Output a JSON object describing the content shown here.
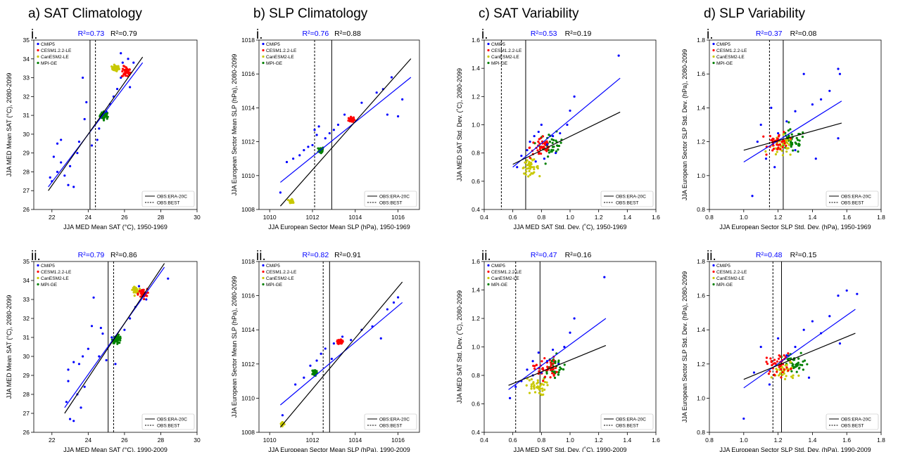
{
  "legend_entries": [
    {
      "name": "CMIP5",
      "color": "#0000ff"
    },
    {
      "name": "CESM1.2.2-LE",
      "color": "#ff0000"
    },
    {
      "name": "CanESM2-LE",
      "color": "#c8c800"
    },
    {
      "name": "MPI-GE",
      "color": "#008000"
    }
  ],
  "obs_legend": [
    "OBS:ERA-20C",
    "OBS:BEST"
  ],
  "colors": {
    "cmip": "#0000ff",
    "cesm": "#ff0000",
    "canesm": "#c8c800",
    "mpi": "#008000",
    "fit_all": "#000000",
    "fit_cmip": "#0000ff",
    "r2_blue": "#0000ff"
  },
  "chart_data": [
    {
      "type": "scatter",
      "col_title": "a) SAT Climatology",
      "row_label": "i.",
      "r2_cmip": "R²=0.73",
      "r2_all": "R²=0.79",
      "xlabel": "JJA MED Mean SAT (°C), 1950-1969",
      "ylabel": "JJA MED Mean SAT (°C), 2080-2099",
      "xlim": [
        21,
        30
      ],
      "ylim": [
        26,
        35
      ],
      "xticks": [
        22,
        24,
        26,
        28,
        30
      ],
      "yticks": [
        26,
        27,
        28,
        29,
        30,
        31,
        32,
        33,
        34,
        35
      ],
      "tick_dec": 0,
      "obs_era": 24.1,
      "obs_best": 24.4,
      "fit_all": [
        [
          21.8,
          27.0
        ],
        [
          27.0,
          34.1
        ]
      ],
      "fit_cmip": [
        [
          21.8,
          27.2
        ],
        [
          27.0,
          33.8
        ]
      ],
      "clusters": {
        "cesm": [
          26.1,
          33.3,
          0.25,
          0.3
        ],
        "canesm": [
          25.5,
          33.5,
          0.2,
          0.15
        ],
        "mpi": [
          24.9,
          31.0,
          0.25,
          0.2
        ]
      },
      "cmip_points": [
        [
          21.9,
          27.7
        ],
        [
          22.0,
          27.5
        ],
        [
          22.3,
          28.0
        ],
        [
          22.5,
          28.5
        ],
        [
          22.7,
          27.8
        ],
        [
          22.9,
          27.3
        ],
        [
          23.0,
          28.3
        ],
        [
          23.2,
          27.2
        ],
        [
          23.4,
          29.0
        ],
        [
          23.5,
          29.6
        ],
        [
          22.3,
          29.5
        ],
        [
          22.5,
          29.7
        ],
        [
          23.8,
          30.8
        ],
        [
          23.9,
          31.7
        ],
        [
          23.7,
          33.0
        ],
        [
          24.5,
          29.7
        ],
        [
          24.6,
          30.3
        ],
        [
          25.0,
          31.2
        ],
        [
          25.2,
          31.6
        ],
        [
          25.4,
          32.0
        ],
        [
          25.6,
          32.4
        ],
        [
          25.8,
          33.0
        ],
        [
          25.8,
          34.3
        ],
        [
          25.9,
          33.8
        ],
        [
          26.2,
          34.0
        ],
        [
          26.5,
          33.8
        ],
        [
          26.3,
          32.5
        ],
        [
          24.2,
          29.4
        ],
        [
          22.1,
          28.8
        ]
      ]
    },
    {
      "type": "scatter",
      "col_title": "b) SLP Climatology",
      "row_label": "i.",
      "r2_cmip": "R²=0.76",
      "r2_all": "R²=0.88",
      "xlabel": "JJA European Sector Mean SLP (hPa), 1950-1969",
      "ylabel": "JJA European Sector Mean SLP (hPa), 2080-2099",
      "xlim": [
        1009.5,
        1017
      ],
      "ylim": [
        1008,
        1018
      ],
      "xticks": [
        1010,
        1012,
        1014,
        1016
      ],
      "yticks": [
        1008,
        1010,
        1012,
        1014,
        1016,
        1018
      ],
      "tick_dec": 0,
      "obs_era": 1012.9,
      "obs_best": 1012.1,
      "fit_all": [
        [
          1010.5,
          1008.2
        ],
        [
          1016.6,
          1016.9
        ]
      ],
      "fit_cmip": [
        [
          1010.5,
          1009.6
        ],
        [
          1016.6,
          1015.8
        ]
      ],
      "clusters": {
        "cesm": [
          1013.8,
          1013.3,
          0.12,
          0.15
        ],
        "canesm": [
          1011.0,
          1008.5,
          0.08,
          0.1
        ],
        "mpi": [
          1012.4,
          1011.5,
          0.12,
          0.2
        ]
      },
      "cmip_points": [
        [
          1010.5,
          1009.0
        ],
        [
          1010.8,
          1010.8
        ],
        [
          1011.1,
          1011.0
        ],
        [
          1011.4,
          1011.2
        ],
        [
          1011.8,
          1011.7
        ],
        [
          1012.1,
          1012.7
        ],
        [
          1012.2,
          1012.4
        ],
        [
          1012.6,
          1012.2
        ],
        [
          1012.8,
          1012.5
        ],
        [
          1013.0,
          1012.7
        ],
        [
          1013.2,
          1013.0
        ],
        [
          1013.5,
          1013.6
        ],
        [
          1014.3,
          1014.3
        ],
        [
          1015.0,
          1014.9
        ],
        [
          1015.3,
          1015.1
        ],
        [
          1015.7,
          1015.8
        ],
        [
          1016.0,
          1013.5
        ],
        [
          1016.2,
          1014.5
        ],
        [
          1015.5,
          1013.6
        ],
        [
          1012.3,
          1012.9
        ],
        [
          1012.0,
          1011.8
        ],
        [
          1011.6,
          1011.5
        ]
      ]
    },
    {
      "type": "scatter",
      "col_title": "c) SAT Variability",
      "row_label": "i.",
      "r2_cmip": "R²=0.53",
      "r2_all": "R²=0.19",
      "xlabel": "JJA MED SAT Std. Dev. (˚C), 1950-1969",
      "ylabel": "JJA MED SAT Std. Dev. (˚C), 2080-2099",
      "xlim": [
        0.4,
        1.6
      ],
      "ylim": [
        0.4,
        1.6
      ],
      "xticks": [
        0.4,
        0.6,
        0.8,
        1.0,
        1.2,
        1.4,
        1.6
      ],
      "yticks": [
        0.4,
        0.6,
        0.8,
        1.0,
        1.2,
        1.4,
        1.6
      ],
      "tick_dec": 1,
      "obs_era": 0.69,
      "obs_best": 0.52,
      "fit_all": [
        [
          0.6,
          0.72
        ],
        [
          1.35,
          1.09
        ]
      ],
      "fit_cmip": [
        [
          0.6,
          0.7
        ],
        [
          1.35,
          1.33
        ]
      ],
      "clusters": {
        "cesm": [
          0.8,
          0.84,
          0.08,
          0.08
        ],
        "canesm": [
          0.72,
          0.7,
          0.06,
          0.05
        ],
        "mpi": [
          0.87,
          0.86,
          0.08,
          0.08
        ]
      },
      "cmip_points": [
        [
          0.63,
          0.7
        ],
        [
          0.66,
          0.78
        ],
        [
          0.7,
          0.82
        ],
        [
          0.72,
          0.88
        ],
        [
          0.75,
          0.92
        ],
        [
          0.78,
          0.95
        ],
        [
          0.8,
          1.0
        ],
        [
          0.84,
          0.86
        ],
        [
          0.88,
          0.92
        ],
        [
          0.9,
          0.8
        ],
        [
          0.93,
          0.94
        ],
        [
          0.98,
          1.0
        ],
        [
          1.0,
          1.1
        ],
        [
          1.03,
          1.2
        ],
        [
          1.34,
          1.49
        ],
        [
          0.76,
          0.74
        ],
        [
          0.82,
          0.76
        ]
      ]
    },
    {
      "type": "scatter",
      "col_title": "d) SLP Variability",
      "row_label": "i.",
      "r2_cmip": "R²=0.37",
      "r2_all": "R²=0.08",
      "xlabel": "JJA European Sector SLP Std. Dev. (hPa), 1950-1969",
      "ylabel": "JJA European Sector SLP Std. Dev. (hPa), 2080-2099",
      "xlim": [
        0.8,
        1.8
      ],
      "ylim": [
        0.8,
        1.8
      ],
      "xticks": [
        0.8,
        1.0,
        1.2,
        1.4,
        1.6,
        1.8
      ],
      "yticks": [
        0.8,
        1.0,
        1.2,
        1.4,
        1.6,
        1.8
      ],
      "tick_dec": 1,
      "obs_era": 1.23,
      "obs_best": 1.15,
      "fit_all": [
        [
          1.0,
          1.15
        ],
        [
          1.57,
          1.31
        ]
      ],
      "fit_cmip": [
        [
          1.0,
          1.08
        ],
        [
          1.57,
          1.44
        ]
      ],
      "clusters": {
        "cesm": [
          1.2,
          1.2,
          0.06,
          0.06
        ],
        "canesm": [
          1.22,
          1.17,
          0.07,
          0.06
        ],
        "mpi": [
          1.28,
          1.2,
          0.08,
          0.07
        ]
      },
      "cmip_points": [
        [
          1.05,
          0.88
        ],
        [
          1.08,
          1.2
        ],
        [
          1.1,
          1.3
        ],
        [
          1.13,
          1.1
        ],
        [
          1.16,
          1.4
        ],
        [
          1.2,
          1.25
        ],
        [
          1.25,
          1.32
        ],
        [
          1.3,
          1.38
        ],
        [
          1.35,
          1.6
        ],
        [
          1.4,
          1.42
        ],
        [
          1.45,
          1.45
        ],
        [
          1.5,
          1.5
        ],
        [
          1.55,
          1.63
        ],
        [
          1.56,
          1.6
        ],
        [
          1.55,
          1.22
        ],
        [
          1.42,
          1.1
        ],
        [
          1.3,
          1.15
        ],
        [
          1.18,
          1.05
        ]
      ]
    },
    {
      "type": "scatter",
      "col_title": "",
      "row_label": "ii.",
      "r2_cmip": "R²=0.79",
      "r2_all": "R²=0.86",
      "xlabel": "JJA MED Mean SAT (°C), 1990-2009",
      "ylabel": "JJA MED Mean SAT (°C), 2080-2099",
      "xlim": [
        21,
        30
      ],
      "ylim": [
        26,
        35
      ],
      "xticks": [
        22,
        24,
        26,
        28,
        30
      ],
      "yticks": [
        26,
        27,
        28,
        29,
        30,
        31,
        32,
        33,
        34,
        35
      ],
      "tick_dec": 0,
      "obs_era": 25.1,
      "obs_best": 25.4,
      "fit_all": [
        [
          22.7,
          27.0
        ],
        [
          28.2,
          34.9
        ]
      ],
      "fit_cmip": [
        [
          22.7,
          27.3
        ],
        [
          28.2,
          34.7
        ]
      ],
      "clusters": {
        "cesm": [
          27.0,
          33.3,
          0.25,
          0.25
        ],
        "canesm": [
          26.6,
          33.5,
          0.15,
          0.15
        ],
        "mpi": [
          25.6,
          30.9,
          0.25,
          0.2
        ]
      },
      "cmip_points": [
        [
          22.8,
          27.6
        ],
        [
          23.0,
          26.7
        ],
        [
          23.2,
          26.6
        ],
        [
          23.4,
          28.0
        ],
        [
          23.6,
          27.3
        ],
        [
          23.8,
          28.4
        ],
        [
          22.9,
          29.3
        ],
        [
          23.2,
          29.7
        ],
        [
          23.5,
          29.6
        ],
        [
          23.7,
          30.0
        ],
        [
          24.0,
          30.4
        ],
        [
          24.2,
          31.6
        ],
        [
          24.3,
          33.1
        ],
        [
          24.6,
          30.0
        ],
        [
          24.8,
          31.2
        ],
        [
          25.0,
          29.8
        ],
        [
          25.5,
          29.6
        ],
        [
          26.0,
          31.4
        ],
        [
          26.3,
          32.0
        ],
        [
          26.6,
          32.6
        ],
        [
          26.8,
          33.7
        ],
        [
          27.2,
          33.0
        ],
        [
          28.4,
          34.1
        ],
        [
          24.7,
          31.5
        ],
        [
          25.3,
          31.0
        ],
        [
          22.9,
          28.7
        ]
      ]
    },
    {
      "type": "scatter",
      "col_title": "",
      "row_label": "ii.",
      "r2_cmip": "R²=0.82",
      "r2_all": "R²=0.91",
      "xlabel": "JJA European Sector Mean SLP (hPa), 1990-2009",
      "ylabel": "JJA European Sector Mean SLP (hPa), 2080-2099",
      "xlim": [
        1009.5,
        1017
      ],
      "ylim": [
        1008,
        1018
      ],
      "xticks": [
        1010,
        1012,
        1014,
        1016
      ],
      "yticks": [
        1008,
        1010,
        1012,
        1014,
        1016,
        1018
      ],
      "tick_dec": 0,
      "obs_era": 1012.8,
      "obs_best": 1012.5,
      "fit_all": [
        [
          1010.5,
          1008.3
        ],
        [
          1016.2,
          1016.8
        ]
      ],
      "fit_cmip": [
        [
          1010.5,
          1009.6
        ],
        [
          1016.2,
          1015.6
        ]
      ],
      "clusters": {
        "cesm": [
          1013.3,
          1013.3,
          0.1,
          0.15
        ],
        "canesm": [
          1010.6,
          1008.5,
          0.08,
          0.1
        ],
        "mpi": [
          1012.1,
          1011.5,
          0.12,
          0.2
        ]
      },
      "cmip_points": [
        [
          1010.6,
          1009.0
        ],
        [
          1011.2,
          1010.8
        ],
        [
          1011.6,
          1011.2
        ],
        [
          1011.9,
          1011.9
        ],
        [
          1012.2,
          1012.2
        ],
        [
          1012.4,
          1012.6
        ],
        [
          1012.6,
          1012.9
        ],
        [
          1013.0,
          1013.2
        ],
        [
          1013.4,
          1013.6
        ],
        [
          1013.8,
          1013.4
        ],
        [
          1014.3,
          1014.0
        ],
        [
          1014.8,
          1014.2
        ],
        [
          1015.2,
          1013.5
        ],
        [
          1015.5,
          1015.2
        ],
        [
          1015.8,
          1015.6
        ],
        [
          1016.0,
          1015.9
        ],
        [
          1012.9,
          1012.3
        ]
      ]
    },
    {
      "type": "scatter",
      "col_title": "",
      "row_label": "ii.",
      "r2_cmip": "R²=0.47",
      "r2_all": "R²=0.16",
      "xlabel": "JJA MED SAT Std. Dev. (˚C), 1990-2009",
      "ylabel": "JJA MED SAT Std. Dev. (˚C), 2080-2099",
      "xlim": [
        0.4,
        1.6
      ],
      "ylim": [
        0.4,
        1.6
      ],
      "xticks": [
        0.4,
        0.6,
        0.8,
        1.0,
        1.2,
        1.4,
        1.6
      ],
      "yticks": [
        0.4,
        0.6,
        0.8,
        1.0,
        1.2,
        1.4,
        1.6
      ],
      "tick_dec": 1,
      "obs_era": 0.79,
      "obs_best": 0.62,
      "fit_all": [
        [
          0.57,
          0.73
        ],
        [
          1.25,
          1.01
        ]
      ],
      "fit_cmip": [
        [
          0.57,
          0.7
        ],
        [
          1.25,
          1.2
        ]
      ],
      "clusters": {
        "cesm": [
          0.83,
          0.85,
          0.08,
          0.08
        ],
        "canesm": [
          0.76,
          0.72,
          0.07,
          0.06
        ],
        "mpi": [
          0.88,
          0.86,
          0.08,
          0.08
        ]
      },
      "cmip_points": [
        [
          0.58,
          0.64
        ],
        [
          0.62,
          0.72
        ],
        [
          0.66,
          0.76
        ],
        [
          0.7,
          0.84
        ],
        [
          0.74,
          0.9
        ],
        [
          0.78,
          0.96
        ],
        [
          0.8,
          0.82
        ],
        [
          0.84,
          0.9
        ],
        [
          0.88,
          0.98
        ],
        [
          0.92,
          0.88
        ],
        [
          0.96,
          1.0
        ],
        [
          1.0,
          1.1
        ],
        [
          1.03,
          1.2
        ],
        [
          1.24,
          1.49
        ],
        [
          0.74,
          0.8
        ]
      ]
    },
    {
      "type": "scatter",
      "col_title": "",
      "row_label": "ii.",
      "r2_cmip": "R²=0.48",
      "r2_all": "R²=0.15",
      "xlabel": "JJA European Sector SLP Std. Dev. (hPa), 1990-2009",
      "ylabel": "JJA European Sector SLP Std. Dev. (hPa), 2080-2099",
      "xlim": [
        0.8,
        1.8
      ],
      "ylim": [
        0.8,
        1.8
      ],
      "xticks": [
        0.8,
        1.0,
        1.2,
        1.4,
        1.6,
        1.8
      ],
      "yticks": [
        0.8,
        1.0,
        1.2,
        1.4,
        1.6,
        1.8
      ],
      "tick_dec": 1,
      "obs_era": 1.22,
      "obs_best": 1.17,
      "fit_all": [
        [
          1.0,
          1.11
        ],
        [
          1.65,
          1.38
        ]
      ],
      "fit_cmip": [
        [
          1.0,
          1.06
        ],
        [
          1.65,
          1.52
        ]
      ],
      "clusters": {
        "cesm": [
          1.2,
          1.2,
          0.07,
          0.06
        ],
        "canesm": [
          1.24,
          1.16,
          0.07,
          0.06
        ],
        "mpi": [
          1.3,
          1.2,
          0.08,
          0.06
        ]
      },
      "cmip_points": [
        [
          1.0,
          0.88
        ],
        [
          1.06,
          1.15
        ],
        [
          1.1,
          1.3
        ],
        [
          1.15,
          1.08
        ],
        [
          1.2,
          1.35
        ],
        [
          1.25,
          1.25
        ],
        [
          1.3,
          1.3
        ],
        [
          1.35,
          1.4
        ],
        [
          1.4,
          1.45
        ],
        [
          1.45,
          1.38
        ],
        [
          1.5,
          1.48
        ],
        [
          1.55,
          1.6
        ],
        [
          1.6,
          1.63
        ],
        [
          1.66,
          1.61
        ],
        [
          1.56,
          1.32
        ],
        [
          1.38,
          1.12
        ]
      ]
    }
  ]
}
